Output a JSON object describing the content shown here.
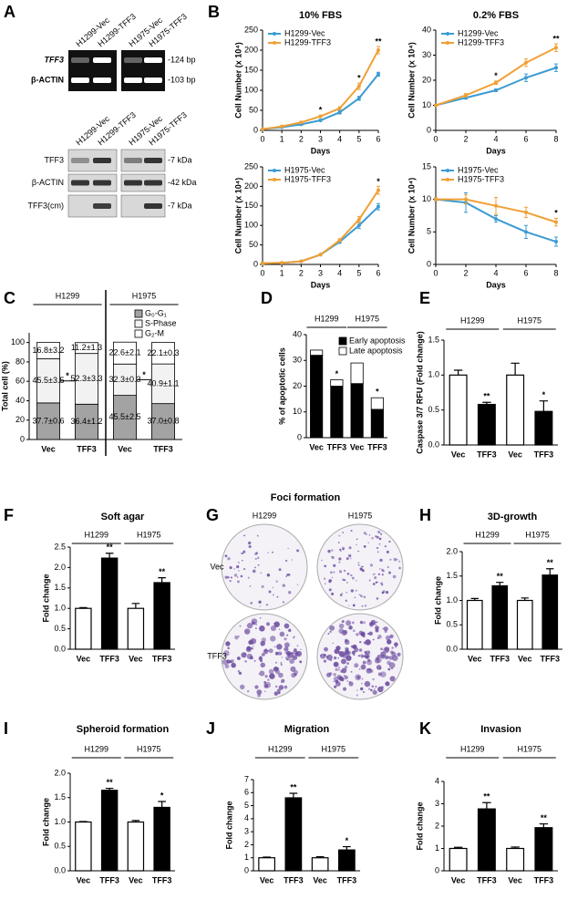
{
  "panel_labels": [
    "A",
    "B",
    "C",
    "D",
    "E",
    "F",
    "G",
    "H",
    "I",
    "J",
    "K"
  ],
  "blot": {
    "pcr_lanes": [
      "H1299-Vec",
      "H1299-TFF3",
      "H1975-Vec",
      "H1975-TFF3"
    ],
    "pcr_rows": [
      "TFF3",
      "β-ACTIN"
    ],
    "pcr_sizes": [
      "-124 bp",
      "-103 bp"
    ],
    "wb_lanes": [
      "H1299-Vec",
      "H1299-TFF3",
      "H1975-Vec",
      "H1975-TFF3"
    ],
    "wb_rows": [
      "TFF3",
      "β-ACTIN",
      "TFF3(cm)"
    ],
    "wb_sizes": [
      "-7 kDa",
      "-42 kDa",
      "-7 kDa"
    ]
  },
  "foci": {
    "title": "Foci formation",
    "columns": [
      "H1299",
      "H1975"
    ],
    "rows": [
      "Vec",
      "TFF3"
    ]
  },
  "chart_data": [
    {
      "type": "line",
      "title": "10% FBS",
      "x_label": "Days",
      "y_label": "Cell Number (x 10⁴)",
      "x": [
        0,
        1,
        2,
        3,
        4,
        5,
        6
      ],
      "xlim": [
        0,
        6
      ],
      "xticks": [
        0,
        1,
        2,
        3,
        4,
        5,
        6
      ],
      "ylim": [
        0,
        250
      ],
      "yticks": [
        0,
        50,
        100,
        150,
        200,
        250
      ],
      "legend": "upper-left",
      "series": [
        {
          "name": "H1299-Vec",
          "color": "#3c9bd3",
          "values": [
            3,
            8,
            15,
            25,
            45,
            80,
            140
          ],
          "errors": [
            1,
            1,
            2,
            2,
            4,
            5,
            5
          ]
        },
        {
          "name": "H1299-TFF3",
          "color": "#f0a035",
          "values": [
            3,
            10,
            20,
            35,
            55,
            110,
            200
          ],
          "errors": [
            1,
            1,
            2,
            3,
            4,
            8,
            9
          ]
        }
      ],
      "annotations": [
        null,
        null,
        null,
        "*",
        null,
        "*",
        "**"
      ]
    },
    {
      "type": "line",
      "title": "0.2% FBS",
      "x_label": "Days",
      "y_label": "Cell Number (x 10⁴)",
      "x": [
        0,
        2,
        4,
        6,
        8
      ],
      "xlim": [
        0,
        8
      ],
      "xticks": [
        0,
        2,
        4,
        6,
        8
      ],
      "ylim": [
        0,
        40
      ],
      "yticks": [
        0,
        10,
        20,
        30,
        40
      ],
      "legend": "upper-left",
      "series": [
        {
          "name": "H1299-Vec",
          "color": "#3c9bd3",
          "values": [
            10,
            13,
            16,
            21,
            25
          ],
          "errors": [
            0.3,
            0.5,
            0.5,
            1.5,
            1.5
          ]
        },
        {
          "name": "H1299-TFF3",
          "color": "#f0a035",
          "values": [
            10,
            14,
            19,
            27,
            33
          ],
          "errors": [
            0.3,
            0.7,
            0.7,
            1.5,
            1.5
          ]
        }
      ],
      "annotations": [
        null,
        null,
        "*",
        null,
        "**"
      ]
    },
    {
      "type": "line",
      "x_label": "Days",
      "y_label": "Cell Number (x 10⁴)",
      "x": [
        0,
        1,
        2,
        3,
        4,
        5,
        6
      ],
      "xlim": [
        0,
        6
      ],
      "xticks": [
        0,
        1,
        2,
        3,
        4,
        5,
        6
      ],
      "ylim": [
        0,
        250
      ],
      "yticks": [
        0,
        50,
        100,
        150,
        200,
        250
      ],
      "legend": "upper-left",
      "series": [
        {
          "name": "H1975-Vec",
          "color": "#3c9bd3",
          "values": [
            3,
            4,
            8,
            25,
            58,
            100,
            148
          ],
          "errors": [
            1,
            1,
            1,
            2,
            4,
            8,
            8
          ]
        },
        {
          "name": "H1975-TFF3",
          "color": "#f0a035",
          "values": [
            3,
            4,
            8,
            25,
            62,
            115,
            190
          ],
          "errors": [
            1,
            1,
            1,
            2,
            4,
            8,
            10
          ]
        }
      ],
      "annotations": [
        null,
        null,
        null,
        null,
        null,
        null,
        "*"
      ]
    },
    {
      "type": "line",
      "x_label": "Days",
      "y_label": "Cell Number (x 10⁴)",
      "x": [
        0,
        2,
        4,
        6,
        8
      ],
      "xlim": [
        0,
        8
      ],
      "xticks": [
        0,
        2,
        4,
        6,
        8
      ],
      "ylim": [
        0,
        15
      ],
      "yticks": [
        0,
        5,
        10,
        15
      ],
      "legend": "upper-left",
      "series": [
        {
          "name": "H1975-Vec",
          "color": "#3c9bd3",
          "values": [
            10,
            9.5,
            7,
            5,
            3.5
          ],
          "errors": [
            0.2,
            1.5,
            0.5,
            1,
            0.7
          ]
        },
        {
          "name": "H1975-TFF3",
          "color": "#f0a035",
          "values": [
            10,
            10,
            9,
            8,
            6.5
          ],
          "errors": [
            0.2,
            0.7,
            1.3,
            0.8,
            0.6
          ]
        }
      ],
      "annotations": [
        null,
        null,
        null,
        null,
        "*"
      ]
    },
    {
      "type": "bar",
      "stacked": true,
      "y_label": "Total cell (%)",
      "categories": [
        "Vec",
        "TFF3",
        "Vec",
        "TFF3"
      ],
      "groups": [
        "H1299",
        "H1975"
      ],
      "ylim": [
        0,
        110
      ],
      "yticks": [
        0,
        20,
        40,
        60,
        80,
        100
      ],
      "legend": "upper-right",
      "series": [
        {
          "name": "G₀-G₁",
          "color": "#a3a3a3",
          "values": [
            37.7,
            36.4,
            45.5,
            37.0
          ],
          "value_labels": [
            "37.7±0.6",
            "36.4±1.2",
            "45.5±2.5",
            "37.0±0.8"
          ]
        },
        {
          "name": "S-Phase",
          "color": "#f2f2f2",
          "values": [
            45.5,
            52.3,
            32.3,
            40.9
          ],
          "value_labels": [
            "45.5±3.5",
            "52.3±3.3",
            "32.3±0.3",
            "40.9±1.1"
          ]
        },
        {
          "name": "G₂-M",
          "color": "#ffffff",
          "values": [
            16.8,
            11.2,
            22.6,
            22.1
          ],
          "value_labels": [
            "16.8±3.2",
            "11.2±1.3",
            "22.6±2.1",
            "22.1±0.3"
          ]
        }
      ],
      "group_annotations": [
        "*",
        "*"
      ]
    },
    {
      "type": "bar",
      "stacked": true,
      "y_label": "% of apoptotic cells",
      "categories": [
        "Vec",
        "TFF3",
        "Vec",
        "TFF3"
      ],
      "groups": [
        "H1299",
        "H1975"
      ],
      "ylim": [
        0,
        40
      ],
      "yticks": [
        0,
        10,
        20,
        30,
        40
      ],
      "legend": "upper-right",
      "series": [
        {
          "name": "Early apoptosis",
          "color": "#000000",
          "values": [
            32,
            20,
            21,
            11
          ]
        },
        {
          "name": "Late apoptosis",
          "color": "#ffffff",
          "values": [
            2,
            2.5,
            8,
            4.5
          ]
        }
      ],
      "annotations": [
        null,
        "*",
        null,
        "*"
      ]
    },
    {
      "type": "bar",
      "y_label": "Caspase 3/7 RFU (Fold change)",
      "categories": [
        "Vec",
        "TFF3",
        "Vec",
        "TFF3"
      ],
      "groups": [
        "H1299",
        "H1975"
      ],
      "colors": [
        "#ffffff",
        "#000000",
        "#ffffff",
        "#000000"
      ],
      "values": [
        1.0,
        0.58,
        1.0,
        0.48
      ],
      "errors": [
        0.07,
        0.03,
        0.17,
        0.15
      ],
      "ylim": [
        0,
        1.5
      ],
      "yticks": [
        {
          "value": 0,
          "label": "0.0"
        },
        0.5,
        {
          "value": 1,
          "label": "1.0"
        },
        1.5
      ],
      "annotations": [
        null,
        "**",
        null,
        "*"
      ]
    },
    {
      "type": "bar",
      "title": "Soft agar",
      "y_label": "Fold change",
      "categories": [
        "Vec",
        "TFF3",
        "Vec",
        "TFF3"
      ],
      "groups": [
        "H1299",
        "H1975"
      ],
      "colors": [
        "#ffffff",
        "#000000",
        "#ffffff",
        "#000000"
      ],
      "values": [
        1.0,
        2.23,
        1.0,
        1.63
      ],
      "errors": [
        0.02,
        0.12,
        0.12,
        0.12
      ],
      "ylim": [
        0,
        2.5
      ],
      "yticks": [
        {
          "value": 0,
          "label": "0.0"
        },
        0.5,
        {
          "value": 1,
          "label": "1.0"
        },
        1.5,
        {
          "value": 2,
          "label": "2.0"
        },
        2.5
      ],
      "annotations": [
        null,
        "**",
        null,
        "**"
      ]
    },
    {
      "type": "bar",
      "title": "3D-growth",
      "y_label": "Fold change",
      "categories": [
        "Vec",
        "TFF3",
        "Vec",
        "TFF3"
      ],
      "groups": [
        "H1299",
        "H1975"
      ],
      "colors": [
        "#ffffff",
        "#000000",
        "#ffffff",
        "#000000"
      ],
      "values": [
        1.0,
        1.3,
        1.0,
        1.52
      ],
      "errors": [
        0.04,
        0.07,
        0.05,
        0.13
      ],
      "ylim": [
        0,
        2
      ],
      "yticks": [
        {
          "value": 0,
          "label": "0.0"
        },
        0.5,
        {
          "value": 1,
          "label": "1.0"
        },
        1.5,
        {
          "value": 2,
          "label": "2.0"
        }
      ],
      "annotations": [
        null,
        "**",
        null,
        "**"
      ]
    },
    {
      "type": "bar",
      "title": "Spheroid formation",
      "y_label": "Fold change",
      "categories": [
        "Vec",
        "TFF3",
        "Vec",
        "TFF3"
      ],
      "groups": [
        "H1299",
        "H1975"
      ],
      "colors": [
        "#ffffff",
        "#000000",
        "#ffffff",
        "#000000"
      ],
      "values": [
        1.0,
        1.65,
        1.0,
        1.3
      ],
      "errors": [
        0.01,
        0.04,
        0.03,
        0.12
      ],
      "ylim": [
        0,
        2
      ],
      "yticks": [
        {
          "value": 0,
          "label": "0.0"
        },
        0.5,
        {
          "value": 1,
          "label": "1.0"
        },
        1.5,
        {
          "value": 2,
          "label": "2.0"
        }
      ],
      "annotations": [
        null,
        "**",
        null,
        "*"
      ]
    },
    {
      "type": "bar",
      "title": "Migration",
      "y_label": "Fold change",
      "categories": [
        "Vec",
        "TFF3",
        "Vec",
        "TFF3"
      ],
      "groups": [
        "H1299",
        "H1975"
      ],
      "colors": [
        "#ffffff",
        "#000000",
        "#ffffff",
        "#000000"
      ],
      "values": [
        1.0,
        5.6,
        1.0,
        1.6
      ],
      "errors": [
        0.05,
        0.35,
        0.08,
        0.25
      ],
      "ylim": [
        0,
        7
      ],
      "yticks": [
        0,
        1,
        2,
        3,
        4,
        5,
        6,
        7
      ],
      "annotations": [
        null,
        "**",
        null,
        "*"
      ]
    },
    {
      "type": "bar",
      "title": "Invasion",
      "y_label": "Fold change",
      "categories": [
        "Vec",
        "TFF3",
        "Vec",
        "TFF3"
      ],
      "groups": [
        "H1299",
        "H1975"
      ],
      "colors": [
        "#ffffff",
        "#000000",
        "#ffffff",
        "#000000"
      ],
      "values": [
        1.0,
        2.77,
        1.0,
        1.93
      ],
      "errors": [
        0.05,
        0.28,
        0.06,
        0.17
      ],
      "ylim": [
        0,
        4
      ],
      "yticks": [
        0,
        1,
        2,
        3,
        4
      ],
      "annotations": [
        null,
        "**",
        null,
        "**"
      ]
    }
  ]
}
